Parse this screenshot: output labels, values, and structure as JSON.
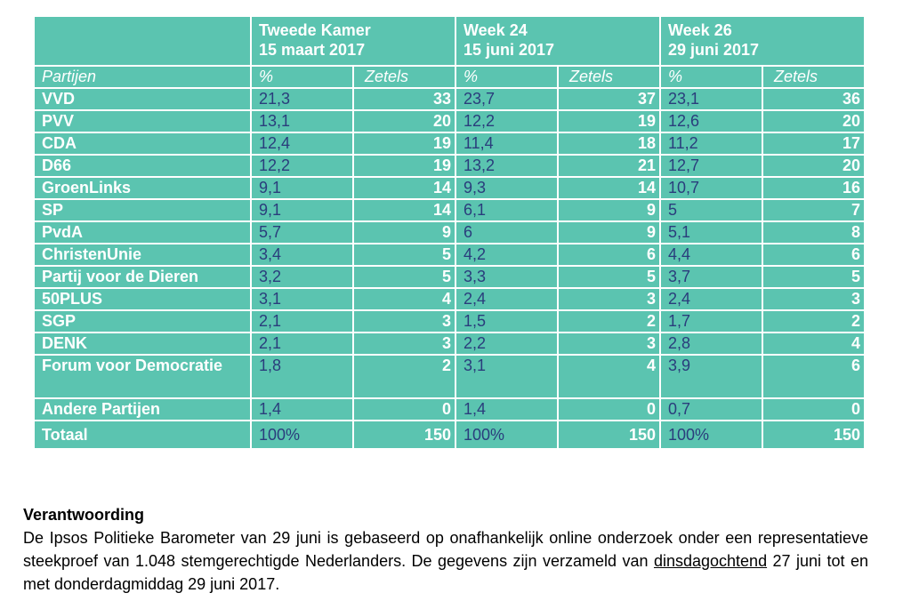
{
  "table": {
    "header_blank": "",
    "periods": [
      {
        "line1": "Tweede Kamer",
        "line2": "15 maart 2017"
      },
      {
        "line1": "Week 24",
        "line2": "15 juni 2017"
      },
      {
        "line1": "Week 26",
        "line2": "29 juni 2017"
      }
    ],
    "col_party": "Partijen",
    "col_pct": "%",
    "col_seats": "Zetels",
    "rows": [
      {
        "party": "VVD",
        "v": [
          "21,3",
          "33",
          "23,7",
          "37",
          "23,1",
          "36"
        ]
      },
      {
        "party": "PVV",
        "v": [
          "13,1",
          "20",
          "12,2",
          "19",
          "12,6",
          "20"
        ]
      },
      {
        "party": "CDA",
        "v": [
          "12,4",
          "19",
          "11,4",
          "18",
          "11,2",
          "17"
        ]
      },
      {
        "party": "D66",
        "v": [
          "12,2",
          "19",
          "13,2",
          "21",
          "12,7",
          "20"
        ]
      },
      {
        "party": "GroenLinks",
        "v": [
          "9,1",
          "14",
          "9,3",
          "14",
          "10,7",
          "16"
        ]
      },
      {
        "party": "SP",
        "v": [
          "9,1",
          "14",
          "6,1",
          "9",
          "5",
          "7"
        ]
      },
      {
        "party": "PvdA",
        "v": [
          "5,7",
          "9",
          "6",
          "9",
          "5,1",
          "8"
        ]
      },
      {
        "party": "ChristenUnie",
        "v": [
          "3,4",
          "5",
          "4,2",
          "6",
          "4,4",
          "6"
        ]
      },
      {
        "party": "Partij voor de Dieren",
        "v": [
          "3,2",
          "5",
          "3,3",
          "5",
          "3,7",
          "5"
        ]
      },
      {
        "party": "50PLUS",
        "v": [
          "3,1",
          "4",
          "2,4",
          "3",
          "2,4",
          "3"
        ]
      },
      {
        "party": "SGP",
        "v": [
          "2,1",
          "3",
          "1,5",
          "2",
          "1,7",
          "2"
        ]
      },
      {
        "party": "DENK",
        "v": [
          "2,1",
          "3",
          "2,2",
          "3",
          "2,8",
          "4"
        ]
      },
      {
        "party": "Forum voor Democratie",
        "v": [
          "1,8",
          "2",
          "3,1",
          "4",
          "3,9",
          "6"
        ]
      },
      {
        "party": "Andere Partijen",
        "v": [
          "1,4",
          "0",
          "1,4",
          "0",
          "0,7",
          "0"
        ]
      },
      {
        "party": "Totaal",
        "v": [
          "100%",
          "150",
          "100%",
          "150",
          "100%",
          "150"
        ]
      }
    ]
  },
  "note": {
    "title": "Verantwoording",
    "body_before": "De Ipsos Politieke Barometer van 29 juni is gebaseerd op onafhankelijk online onderzoek onder een representatieve steekproef van 1.048 stemgerechtigde Nederlanders. De gegevens zijn verzameld van ",
    "body_underlined": "dinsdagochtend",
    "body_after": " 27 juni tot en met donderdagmiddag 29 juni 2017."
  },
  "colors": {
    "table_bg": "#5bc4b0",
    "pct_text": "#2a3d7c",
    "grid": "#ffffff"
  }
}
